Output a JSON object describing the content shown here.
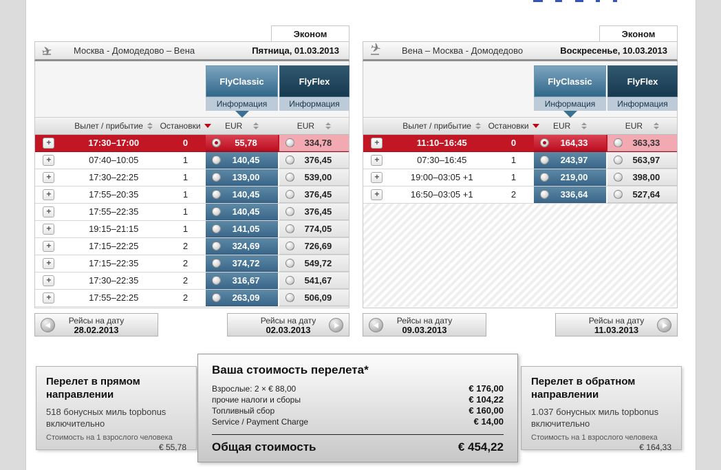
{
  "outbound": {
    "tab": "Эконом",
    "route": "Москва - Домодедово – Вена",
    "date": "Пятница, 01.03.2013",
    "fare_classic": {
      "name": "FlyClassic",
      "info": "Информация"
    },
    "fare_flex": {
      "name": "FlyFlex",
      "info": "Информация"
    },
    "columns": {
      "time": "Вылет / прибытие",
      "stops": "Остановки",
      "classic": "EUR",
      "flex": "EUR"
    },
    "rows": [
      {
        "time": "17:30–17:00",
        "stops": "0",
        "classic": "55,78",
        "flex": "334,78",
        "selected": true
      },
      {
        "time": "07:40–10:05",
        "stops": "1",
        "classic": "140,45",
        "flex": "376,45",
        "selected": false
      },
      {
        "time": "17:30–22:25",
        "stops": "1",
        "classic": "139,00",
        "flex": "539,00",
        "selected": false
      },
      {
        "time": "17:55–20:35",
        "stops": "1",
        "classic": "140,45",
        "flex": "376,45",
        "selected": false
      },
      {
        "time": "17:55–22:35",
        "stops": "1",
        "classic": "140,45",
        "flex": "376,45",
        "selected": false
      },
      {
        "time": "19:15–21:15",
        "stops": "1",
        "classic": "141,05",
        "flex": "774,05",
        "selected": false
      },
      {
        "time": "17:15–22:25",
        "stops": "2",
        "classic": "324,69",
        "flex": "726,69",
        "selected": false
      },
      {
        "time": "17:15–22:35",
        "stops": "2",
        "classic": "374,72",
        "flex": "549,72",
        "selected": false
      },
      {
        "time": "17:30–22:35",
        "stops": "2",
        "classic": "316,67",
        "flex": "541,67",
        "selected": false
      },
      {
        "time": "17:55–22:25",
        "stops": "2",
        "classic": "263,09",
        "flex": "506,09",
        "selected": false
      }
    ],
    "nav_prev": {
      "label": "Рейсы на дату",
      "date": "28.02.2013"
    },
    "nav_next": {
      "label": "Рейсы на дату",
      "date": "02.03.2013"
    }
  },
  "inbound": {
    "tab": "Эконом",
    "route": "Вена – Москва - Домодедово",
    "date": "Воскресенье, 10.03.2013",
    "fare_classic": {
      "name": "FlyClassic",
      "info": "Информация"
    },
    "fare_flex": {
      "name": "FlyFlex",
      "info": "Информация"
    },
    "columns": {
      "time": "Вылет / прибытие",
      "stops": "Остановки",
      "classic": "EUR",
      "flex": "EUR"
    },
    "rows": [
      {
        "time": "11:10–16:45",
        "stops": "0",
        "classic": "164,33",
        "flex": "363,33",
        "selected": true
      },
      {
        "time": "07:30–16:45",
        "stops": "1",
        "classic": "243,97",
        "flex": "563,97",
        "selected": false
      },
      {
        "time": "19:00–03:05 +1",
        "stops": "1",
        "classic": "219,00",
        "flex": "398,00",
        "selected": false
      },
      {
        "time": "16:50–03:05 +1",
        "stops": "2",
        "classic": "336,64",
        "flex": "527,64",
        "selected": false
      }
    ],
    "nav_prev": {
      "label": "Рейсы на дату",
      "date": "09.03.2013"
    },
    "nav_next": {
      "label": "Рейсы на дату",
      "date": "11.03.2013"
    }
  },
  "summary": {
    "outbound_panel": {
      "title": "Перелет в прямом направлении",
      "miles": "518 бонусных миль topbonus включительно",
      "price_label": "Стоимость на 1 взрослого человека",
      "price": "€ 55,78"
    },
    "total_panel": {
      "title": "Ваша стоимость перелета*",
      "items": [
        {
          "label": "Взрослые: 2 × € 88,00",
          "value": "€ 176,00"
        },
        {
          "label": "прочие налоги и сборы",
          "value": "€ 104,22"
        },
        {
          "label": "Топливный сбор",
          "value": "€ 160,00"
        },
        {
          "label": "Service / Payment Charge",
          "value": "€ 14,00"
        }
      ],
      "total_label": "Общая стоимость",
      "total_value": "€ 454,22"
    },
    "inbound_panel": {
      "title": "Перелет в обратном направлении",
      "miles": "1.037 бонусных миль topbonus включительно",
      "price_label": "Стоимость на 1 взрослого человека",
      "price": "€ 164,33"
    }
  },
  "colors": {
    "accent_red": "#c31625",
    "selected_flex_pink": "#f3a9b1",
    "classic_blue": "#3a678a",
    "flex_navy": "#173950",
    "info_bar": "#bdcad7",
    "page_margin_gray": "#dcdcdc"
  }
}
